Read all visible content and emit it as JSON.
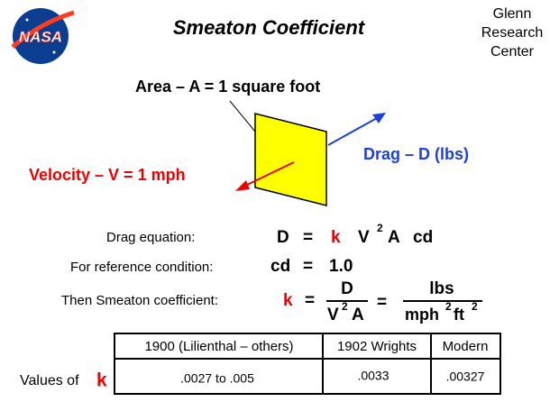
{
  "header": {
    "logo": "NASA",
    "title": "Smeaton Coefficient",
    "center": [
      "Glenn",
      "Research",
      "Center"
    ]
  },
  "diagram": {
    "area_label": "Area – A = 1 square foot",
    "drag_label": "Drag – D (lbs)",
    "velocity_label": "Velocity – V = 1 mph"
  },
  "equations": [
    {
      "label": "Drag equation:",
      "parts": [
        "D",
        "=",
        "k",
        "V",
        "2",
        "A",
        "cd"
      ]
    },
    {
      "label": "For reference condition:",
      "parts": [
        "cd",
        "=",
        "1.0"
      ]
    },
    {
      "label": "Then Smeaton coefficient:",
      "parts": [
        "k",
        "=",
        "D",
        "V",
        "2",
        "A",
        "=",
        "lbs",
        "mph",
        "2",
        "ft",
        "2"
      ]
    }
  ],
  "table": {
    "columns": [
      "1900 (Lilienthal – others)",
      "1902 Wrights",
      "Modern"
    ],
    "row_label": [
      "Values of",
      "k"
    ],
    "rows": [
      [
        ".0027 to .005",
        ".0033",
        ".00327"
      ]
    ]
  }
}
